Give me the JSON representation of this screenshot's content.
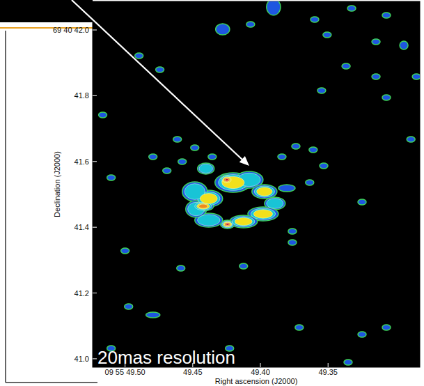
{
  "chart_data": {
    "type": "contour",
    "annotation": "20mas resolution",
    "x_label": "Right ascension (J2000)",
    "y_label": "Declination (J2000)",
    "xlim": [
      49.524,
      49.2822
    ],
    "ylim": [
      40.9744,
      42.0869
    ],
    "xticks": [
      {
        "value": 49.5,
        "label": "09 55 49.50"
      },
      49.45,
      {
        "value": 49.4,
        "label": "49.40"
      },
      49.35
    ],
    "yticks": [
      {
        "value": 42.0,
        "label": "69 40 42.0"
      },
      41.8,
      41.6,
      41.4,
      41.2,
      {
        "value": 41.0,
        "label": "41.0"
      }
    ],
    "levels": [
      1,
      2,
      3,
      4,
      5
    ],
    "colors": [
      "#1e56e0",
      "#18c4d6",
      "#f2e01c",
      "#f08a1a",
      "#d41a1a"
    ],
    "components": [
      {
        "ra": 49.4382,
        "dec": 41.4872,
        "rx": 0.0103,
        "ry": 0.0254,
        "level": 3
      },
      {
        "ra": 49.4485,
        "dec": 41.5084,
        "rx": 0.0093,
        "ry": 0.0297,
        "level": 2
      },
      {
        "ra": 49.4202,
        "dec": 41.536,
        "rx": 0.0134,
        "ry": 0.0297,
        "level": 3
      },
      {
        "ra": 49.4083,
        "dec": 41.5444,
        "rx": 0.0103,
        "ry": 0.0254,
        "level": 2
      },
      {
        "ra": 49.4248,
        "dec": 41.5444,
        "rx": 0.0052,
        "ry": 0.0148,
        "level": 5
      },
      {
        "ra": 49.397,
        "dec": 41.5084,
        "rx": 0.0093,
        "ry": 0.0212,
        "level": 3
      },
      {
        "ra": 49.3893,
        "dec": 41.4724,
        "rx": 0.0077,
        "ry": 0.0191,
        "level": 2
      },
      {
        "ra": 49.398,
        "dec": 41.4406,
        "rx": 0.0113,
        "ry": 0.0212,
        "level": 3
      },
      {
        "ra": 49.4125,
        "dec": 41.4173,
        "rx": 0.0103,
        "ry": 0.0191,
        "level": 3
      },
      {
        "ra": 49.4243,
        "dec": 41.4088,
        "rx": 0.0052,
        "ry": 0.0127,
        "level": 5
      },
      {
        "ra": 49.4382,
        "dec": 41.4215,
        "rx": 0.0103,
        "ry": 0.0212,
        "level": 2
      },
      {
        "ra": 49.4475,
        "dec": 41.4554,
        "rx": 0.0077,
        "ry": 0.0254,
        "level": 2
      },
      {
        "ra": 49.4403,
        "dec": 41.5783,
        "rx": 0.0062,
        "ry": 0.017,
        "level": 2
      },
      {
        "ra": 49.3805,
        "dec": 41.519,
        "rx": 0.0062,
        "ry": 0.0106,
        "level": 1
      },
      {
        "ra": 49.4423,
        "dec": 41.4639,
        "rx": 0.0077,
        "ry": 0.0148,
        "level": 4
      },
      {
        "ra": 49.4279,
        "dec": 42.0021,
        "rx": 0.0052,
        "ry": 0.017,
        "level": 1
      },
      {
        "ra": 49.4073,
        "dec": 42.017,
        "rx": 0.0031,
        "ry": 0.0085,
        "level": 1
      },
      {
        "ra": 49.3903,
        "dec": 42.0699,
        "rx": 0.0052,
        "ry": 0.025,
        "level": 1
      },
      {
        "ra": 49.3599,
        "dec": 42.0318,
        "rx": 0.0031,
        "ry": 0.0085,
        "level": 1
      },
      {
        "ra": 49.3326,
        "dec": 42.0657,
        "rx": 0.0031,
        "ry": 0.0085,
        "level": 1
      },
      {
        "ra": 49.3146,
        "dec": 41.964,
        "rx": 0.0031,
        "ry": 0.0085,
        "level": 1
      },
      {
        "ra": 49.3069,
        "dec": 42.0445,
        "rx": 0.0031,
        "ry": 0.0085,
        "level": 1
      },
      {
        "ra": 49.294,
        "dec": 41.9534,
        "rx": 0.0031,
        "ry": 0.0127,
        "level": 1
      },
      {
        "ra": 49.2847,
        "dec": 41.858,
        "rx": 0.0031,
        "ry": 0.0085,
        "level": 1
      },
      {
        "ra": 49.3507,
        "dec": 41.9852,
        "rx": 0.0031,
        "ry": 0.0085,
        "level": 1
      },
      {
        "ra": 49.3146,
        "dec": 41.858,
        "rx": 0.0031,
        "ry": 0.0085,
        "level": 1
      },
      {
        "ra": 49.3367,
        "dec": 41.8898,
        "rx": 0.0031,
        "ry": 0.0085,
        "level": 1
      },
      {
        "ra": 49.3548,
        "dec": 41.8156,
        "rx": 0.0031,
        "ry": 0.0085,
        "level": 1
      },
      {
        "ra": 49.3069,
        "dec": 41.7945,
        "rx": 0.0031,
        "ry": 0.0085,
        "level": 1
      },
      {
        "ra": 49.4897,
        "dec": 41.9216,
        "rx": 0.0031,
        "ry": 0.0085,
        "level": 1
      },
      {
        "ra": 49.4743,
        "dec": 41.8792,
        "rx": 0.0031,
        "ry": 0.0085,
        "level": 1
      },
      {
        "ra": 49.5165,
        "dec": 41.7415,
        "rx": 0.0031,
        "ry": 0.0085,
        "level": 1
      },
      {
        "ra": 49.4614,
        "dec": 41.6673,
        "rx": 0.0031,
        "ry": 0.0085,
        "level": 1
      },
      {
        "ra": 49.5103,
        "dec": 41.5508,
        "rx": 0.0031,
        "ry": 0.0085,
        "level": 1
      },
      {
        "ra": 49.4794,
        "dec": 41.6143,
        "rx": 0.0031,
        "ry": 0.0085,
        "level": 1
      },
      {
        "ra": 49.4578,
        "dec": 41.5995,
        "rx": 0.0031,
        "ry": 0.0085,
        "level": 1
      },
      {
        "ra": 49.4691,
        "dec": 41.572,
        "rx": 0.0031,
        "ry": 0.0085,
        "level": 1
      },
      {
        "ra": 49.4485,
        "dec": 41.6419,
        "rx": 0.0031,
        "ry": 0.0085,
        "level": 1
      },
      {
        "ra": 49.3738,
        "dec": 41.6461,
        "rx": 0.0031,
        "ry": 0.0085,
        "level": 1
      },
      {
        "ra": 49.3841,
        "dec": 41.6143,
        "rx": 0.0031,
        "ry": 0.0085,
        "level": 1
      },
      {
        "ra": 49.361,
        "dec": 41.6355,
        "rx": 0.0031,
        "ry": 0.0085,
        "level": 1
      },
      {
        "ra": 49.3532,
        "dec": 41.5868,
        "rx": 0.0031,
        "ry": 0.0085,
        "level": 1
      },
      {
        "ra": 49.3764,
        "dec": 41.3876,
        "rx": 0.0031,
        "ry": 0.0085,
        "level": 1
      },
      {
        "ra": 49.3764,
        "dec": 41.3537,
        "rx": 0.0031,
        "ry": 0.0085,
        "level": 1
      },
      {
        "ra": 49.5,
        "dec": 41.3283,
        "rx": 0.0031,
        "ry": 0.0085,
        "level": 1
      },
      {
        "ra": 49.4588,
        "dec": 41.2753,
        "rx": 0.0031,
        "ry": 0.0085,
        "level": 1
      },
      {
        "ra": 49.4974,
        "dec": 41.1588,
        "rx": 0.0031,
        "ry": 0.0085,
        "level": 1
      },
      {
        "ra": 49.4794,
        "dec": 41.1333,
        "rx": 0.0052,
        "ry": 0.0085,
        "level": 1
      },
      {
        "ra": 49.4125,
        "dec": 41.2817,
        "rx": 0.0031,
        "ry": 0.0085,
        "level": 1
      },
      {
        "ra": 49.3713,
        "dec": 41.0952,
        "rx": 0.0031,
        "ry": 0.0085,
        "level": 1
      },
      {
        "ra": 49.3249,
        "dec": 41.074,
        "rx": 0.0031,
        "ry": 0.0085,
        "level": 1
      },
      {
        "ra": 49.3069,
        "dec": 41.0952,
        "rx": 0.0031,
        "ry": 0.0085,
        "level": 1
      },
      {
        "ra": 49.3352,
        "dec": 40.9892,
        "rx": 0.0031,
        "ry": 0.0085,
        "level": 1
      },
      {
        "ra": 49.5103,
        "dec": 41.0316,
        "rx": 0.0031,
        "ry": 0.0085,
        "level": 1
      },
      {
        "ra": 49.4228,
        "dec": 41.0316,
        "rx": 0.0031,
        "ry": 0.0085,
        "level": 1
      },
      {
        "ra": 49.2888,
        "dec": 41.6673,
        "rx": 0.0031,
        "ry": 0.0085,
        "level": 1
      },
      {
        "ra": 49.3249,
        "dec": 41.4766,
        "rx": 0.0031,
        "ry": 0.0085,
        "level": 1
      },
      {
        "ra": 49.4356,
        "dec": 41.6143,
        "rx": 0.0031,
        "ry": 0.0085,
        "level": 1
      },
      {
        "ra": 49.3636,
        "dec": 41.5359,
        "rx": 0.0031,
        "ry": 0.0085,
        "level": 1
      }
    ]
  }
}
